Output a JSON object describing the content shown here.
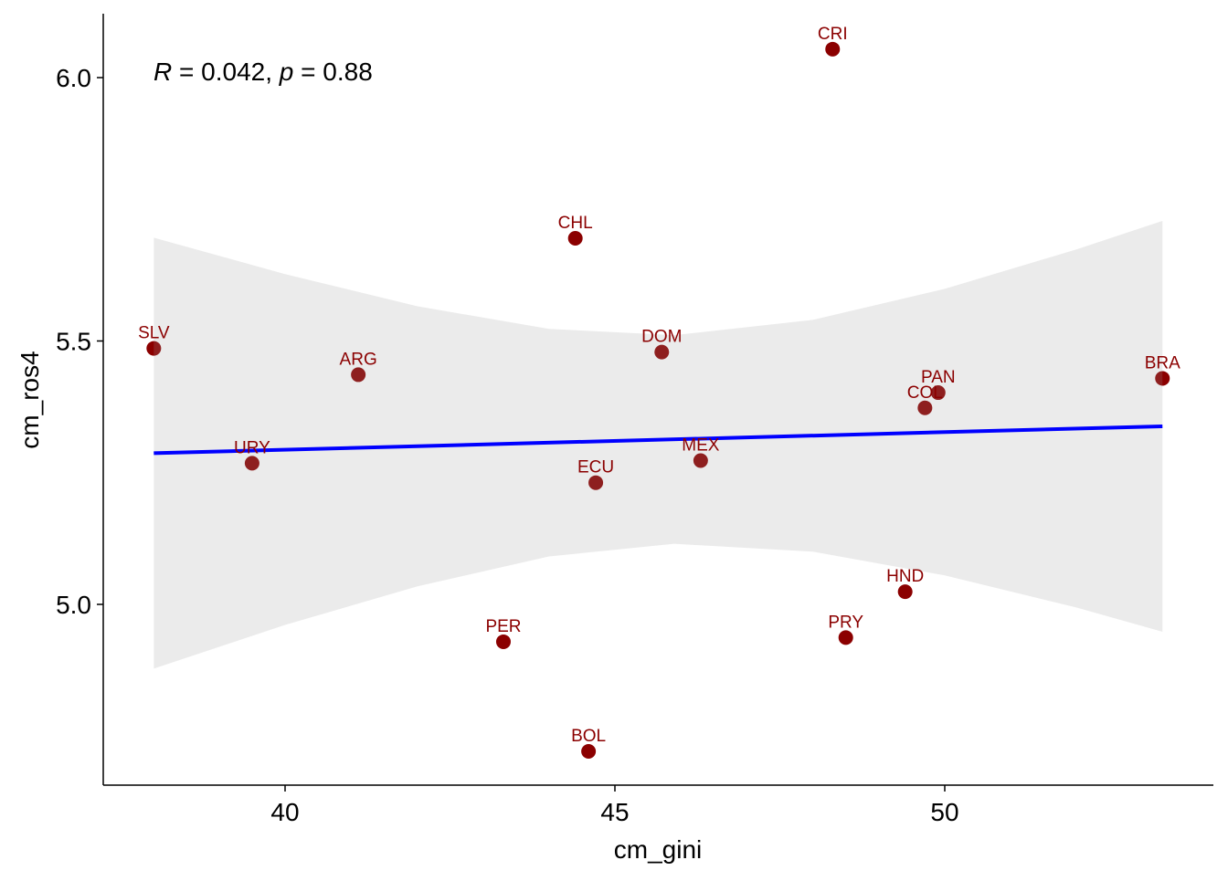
{
  "chart_data": {
    "type": "scatter",
    "title": "",
    "xlabel": "cm_gini",
    "ylabel": "cm_ros4",
    "xlim": [
      37.25,
      54.05
    ],
    "ylim": [
      4.68,
      6.12
    ],
    "x_ticks": [
      40,
      45,
      50
    ],
    "x_tick_labels": [
      "40",
      "45",
      "50"
    ],
    "y_ticks": [
      5.0,
      5.5,
      6.0
    ],
    "y_tick_labels": [
      "5.0",
      "5.5",
      "6.0"
    ],
    "grid": false,
    "annotation": {
      "r_label": "R",
      "r_text": " = 0.042, ",
      "p_label": "p",
      "p_text": " = 0.88"
    },
    "point_color": "#8B0000",
    "line_color": "#0000FF",
    "band_color": "#999999",
    "points": [
      {
        "label": "CRI",
        "x": 48.3,
        "y": 6.054
      },
      {
        "label": "CHL",
        "x": 44.4,
        "y": 5.695
      },
      {
        "label": "SLV",
        "x": 38.01,
        "y": 5.486
      },
      {
        "label": "DOM",
        "x": 45.71,
        "y": 5.479
      },
      {
        "label": "ARG",
        "x": 41.11,
        "y": 5.436
      },
      {
        "label": "BRA",
        "x": 53.3,
        "y": 5.429
      },
      {
        "label": "PAN",
        "x": 49.9,
        "y": 5.402
      },
      {
        "label": "COL",
        "x": 49.7,
        "y": 5.373
      },
      {
        "label": "URY",
        "x": 39.5,
        "y": 5.268
      },
      {
        "label": "MEX",
        "x": 46.3,
        "y": 5.273
      },
      {
        "label": "ECU",
        "x": 44.71,
        "y": 5.231
      },
      {
        "label": "HND",
        "x": 49.4,
        "y": 5.024
      },
      {
        "label": "PRY",
        "x": 48.5,
        "y": 4.937
      },
      {
        "label": "PER",
        "x": 43.31,
        "y": 4.929
      },
      {
        "label": "BOL",
        "x": 44.6,
        "y": 4.721
      }
    ],
    "regression": {
      "x": [
        38.01,
        53.3
      ],
      "y": [
        5.287,
        5.338
      ]
    },
    "confidence_band": {
      "x": [
        38.01,
        40,
        42,
        44,
        45.9,
        48,
        50,
        52,
        53.3
      ],
      "lower": [
        4.878,
        4.961,
        5.034,
        5.091,
        5.115,
        5.1,
        5.055,
        4.994,
        4.948
      ],
      "upper": [
        5.696,
        5.627,
        5.566,
        5.523,
        5.511,
        5.54,
        5.599,
        5.674,
        5.728
      ]
    }
  }
}
